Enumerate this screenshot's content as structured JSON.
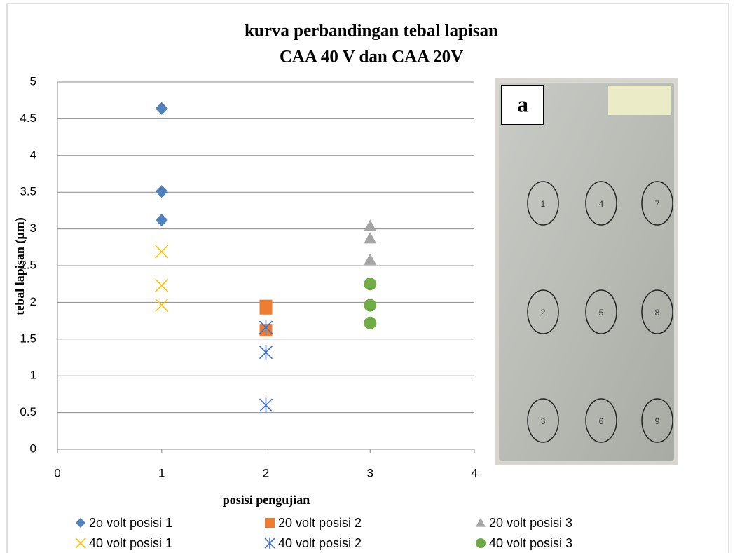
{
  "chart_data": {
    "type": "scatter",
    "title": [
      "kurva perbandingan tebal lapisan",
      "CAA 40 V dan CAA 20V"
    ],
    "x_label": "posisi pengujian",
    "y_label": "tebal lapisan (µm)",
    "xlim": [
      0,
      4
    ],
    "xticks": [
      0,
      1,
      2,
      3,
      4
    ],
    "ylim": [
      0,
      5
    ],
    "yticks": [
      0,
      0.5,
      1,
      1.5,
      2,
      2.5,
      3,
      3.5,
      4,
      4.5,
      5
    ],
    "grid": true,
    "legend": "bottom",
    "series": [
      {
        "name": "2o volt posisi 1",
        "color": "#4f81bd",
        "marker": "diamond",
        "x": [
          1,
          1,
          1
        ],
        "values": [
          4.64,
          3.51,
          3.12
        ]
      },
      {
        "name": "20 volt posisi 2",
        "color": "#ed7d31",
        "marker": "square",
        "x": [
          2,
          2,
          2
        ],
        "values": [
          1.95,
          1.92,
          1.62
        ]
      },
      {
        "name": "20 volt posisi 3",
        "color": "#a5a5a5",
        "marker": "triangle",
        "x": [
          3,
          3,
          3
        ],
        "values": [
          3.04,
          2.87,
          2.58
        ]
      },
      {
        "name": "40 volt posisi 1",
        "color": "#ffc000",
        "marker": "cross",
        "x": [
          1,
          1,
          1
        ],
        "values": [
          2.69,
          2.23,
          1.96
        ]
      },
      {
        "name": "40 volt posisi 2",
        "color": "#4472c4",
        "marker": "asterisk",
        "x": [
          2,
          2,
          2
        ],
        "values": [
          1.66,
          1.32,
          0.6
        ]
      },
      {
        "name": "40 volt posisi 3",
        "color": "#70ad47",
        "marker": "circle",
        "x": [
          3,
          3,
          3
        ],
        "values": [
          2.25,
          1.96,
          1.72
        ]
      }
    ]
  },
  "photo": {
    "label": "a",
    "circles": [
      "1",
      "4",
      "7",
      "2",
      "5",
      "8",
      "3",
      "6",
      "9"
    ]
  }
}
